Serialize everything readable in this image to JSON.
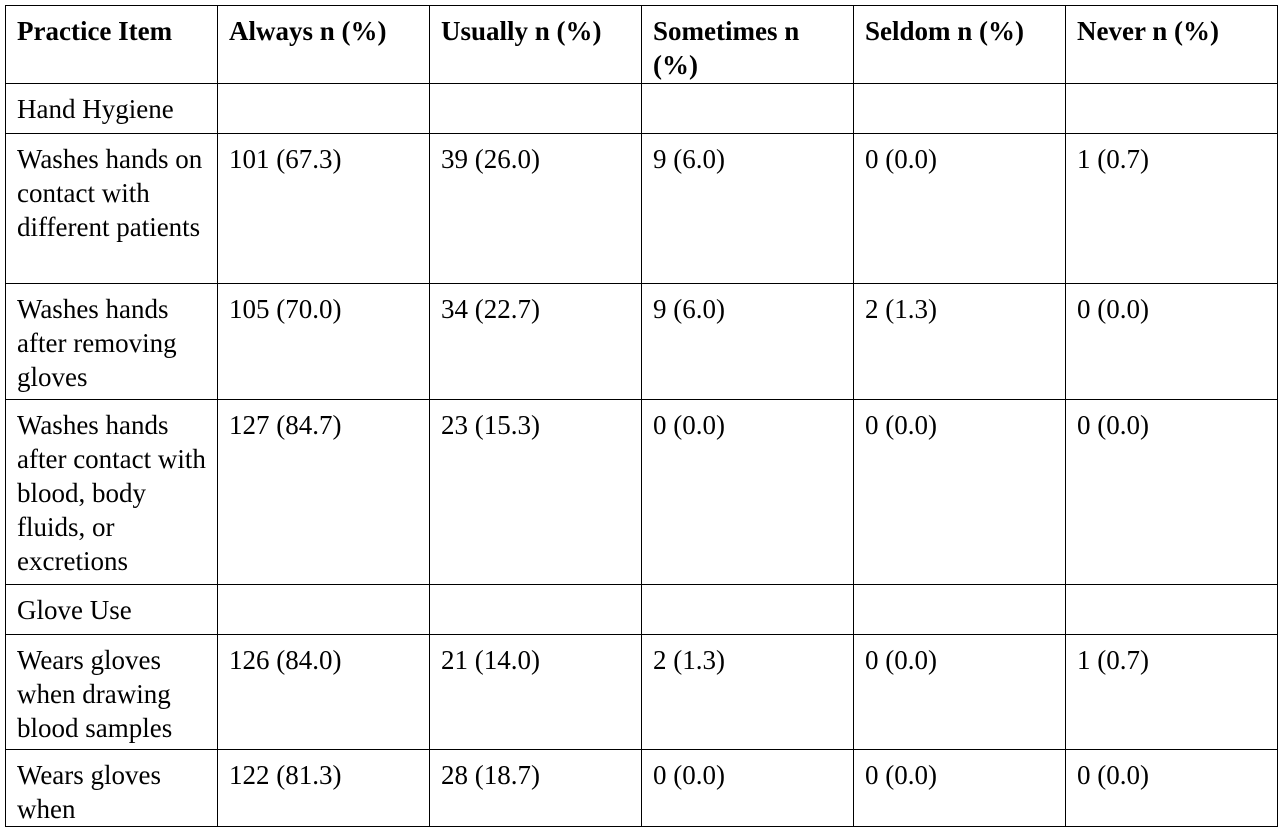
{
  "table": {
    "header": [
      "Practice Item",
      "Always n (%)",
      "Usually n (%)",
      "Sometimes n (%)",
      "Seldom n (%)",
      "Never n (%)"
    ],
    "rows": [
      [
        "Hand Hygiene"
      ],
      [
        "Washes hands on contact with different patients",
        "101 (67.3)",
        "39 (26.0)",
        "9 (6.0)",
        "0 (0.0)",
        "1 (0.7)"
      ],
      [
        "Washes hands after removing gloves",
        "105 (70.0)",
        "34 (22.7)",
        "9 (6.0)",
        "2 (1.3)",
        "0 (0.0)"
      ],
      [
        "Washes hands after contact with blood, body fluids, or excretions",
        "127 (84.7)",
        "23 (15.3)",
        "0 (0.0)",
        "0 (0.0)",
        "0 (0.0)"
      ],
      [
        "Glove Use"
      ],
      [
        "Wears gloves when drawing blood samples",
        "126 (84.0)",
        "21 (14.0)",
        "2 (1.3)",
        "0 (0.0)",
        "1 (0.7)"
      ],
      [
        "Wears gloves when",
        "122 (81.3)",
        "28 (18.7)",
        "0 (0.0)",
        "0 (0.0)",
        "0 (0.0)"
      ]
    ]
  }
}
